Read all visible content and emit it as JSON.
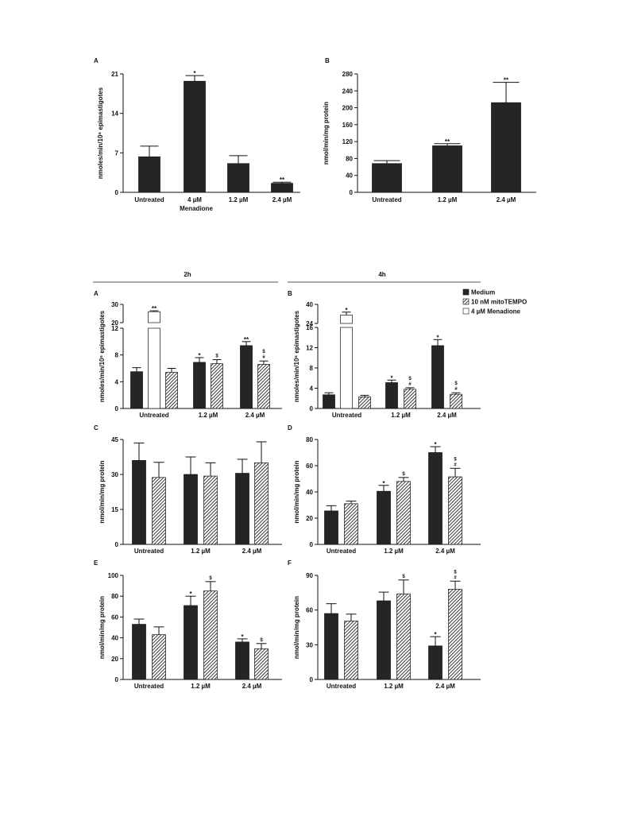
{
  "styles": {
    "medium": "#252525",
    "mito": "hatch",
    "menadione": "#ffffff",
    "axis": "#111111"
  },
  "legend": {
    "items": [
      {
        "key": "medium",
        "label": "Medium"
      },
      {
        "key": "mito",
        "label": "10 nM mitoTEMPO"
      },
      {
        "key": "menadione",
        "label": "4 µM Menadione"
      }
    ]
  },
  "headers": {
    "left": "2h",
    "right": "4h"
  },
  "chart_data": [
    {
      "id": "topA",
      "letter": "A",
      "type": "bar",
      "ylabel": "nmoles/min/10⁶ epimastigotes",
      "xlabel": "Menadione",
      "ylim": [
        0,
        21
      ],
      "yticks": [
        "0",
        "7",
        "14",
        "21"
      ],
      "ytickValues": [
        0,
        7,
        14,
        21
      ],
      "categories": [
        "Untreated",
        "4 µM",
        "1.2 µM",
        "2.4 µM"
      ],
      "bars": [
        {
          "value": 6.3,
          "err": 1.9,
          "style": "medium",
          "sig": ""
        },
        {
          "value": 19.7,
          "err": 1.0,
          "style": "medium",
          "sig": "*"
        },
        {
          "value": 5.1,
          "err": 1.4,
          "style": "medium",
          "sig": ""
        },
        {
          "value": 1.6,
          "err": 0.2,
          "style": "medium",
          "sig": "**"
        }
      ]
    },
    {
      "id": "topB",
      "letter": "B",
      "type": "bar",
      "ylabel": "nmol/min/mg protein",
      "ylim": [
        0,
        280
      ],
      "yticks": [
        "0",
        "40",
        "80",
        "120",
        "160",
        "200",
        "240",
        "280"
      ],
      "ytickValues": [
        0,
        40,
        80,
        120,
        160,
        200,
        240,
        280
      ],
      "categories": [
        "Untreated",
        "1.2 µM",
        "2.4 µM"
      ],
      "bars": [
        {
          "value": 68,
          "err": 7,
          "style": "medium",
          "sig": ""
        },
        {
          "value": 110,
          "err": 5,
          "style": "medium",
          "sig": "**"
        },
        {
          "value": 212,
          "err": 48,
          "style": "medium",
          "sig": "**"
        }
      ]
    },
    {
      "id": "bottomA",
      "letter": "A",
      "type": "bar",
      "ylabel": "nmoles/min/10⁶ epimastigotes",
      "broken": true,
      "lower": {
        "ylim": [
          0,
          12
        ],
        "yticks": [
          "0",
          "4",
          "8",
          "12"
        ],
        "ytickValues": [
          0,
          4,
          8,
          12
        ]
      },
      "upper": {
        "ylim": [
          20,
          30
        ],
        "yticks": [
          "20",
          "30"
        ],
        "ytickValues": [
          20,
          30
        ]
      },
      "categories": [
        "Untreated",
        "1.2 µM",
        "2.4 µM"
      ],
      "groups": [
        [
          {
            "value": 5.5,
            "err": 0.6,
            "style": "medium",
            "sig": ""
          },
          {
            "value": 26,
            "err": 0.5,
            "style": "menadione",
            "sig": "**"
          },
          {
            "value": 5.4,
            "err": 0.6,
            "style": "mito",
            "sig": ""
          }
        ],
        [
          {
            "value": 6.9,
            "err": 0.7,
            "style": "medium",
            "sig": "*"
          },
          {
            "value": 6.7,
            "err": 0.6,
            "style": "mito",
            "sig": "$"
          }
        ],
        [
          {
            "value": 9.4,
            "err": 0.6,
            "style": "medium",
            "sig": "**"
          },
          {
            "value": 6.6,
            "err": 0.5,
            "style": "mito",
            "sig": "$\n#"
          }
        ]
      ]
    },
    {
      "id": "bottomB",
      "letter": "B",
      "type": "bar",
      "ylabel": "nmoles/min/10⁶ epimastigotes",
      "broken": true,
      "lower": {
        "ylim": [
          0,
          16
        ],
        "yticks": [
          "0",
          "4",
          "8",
          "12",
          "16"
        ],
        "ytickValues": [
          0,
          4,
          8,
          12,
          16
        ]
      },
      "upper": {
        "ylim": [
          24,
          40
        ],
        "yticks": [
          "24",
          "40"
        ],
        "ytickValues": [
          24,
          40
        ]
      },
      "categories": [
        "Untreated",
        "1.2 µM",
        "2.4 µM"
      ],
      "groups": [
        [
          {
            "value": 2.7,
            "err": 0.4,
            "style": "medium",
            "sig": ""
          },
          {
            "value": 31,
            "err": 2.5,
            "style": "menadione",
            "sig": "*"
          },
          {
            "value": 2.3,
            "err": 0.3,
            "style": "mito",
            "sig": ""
          }
        ],
        [
          {
            "value": 5.1,
            "err": 0.5,
            "style": "medium",
            "sig": "*"
          },
          {
            "value": 3.8,
            "err": 0.3,
            "style": "mito",
            "sig": "$\n#"
          }
        ],
        [
          {
            "value": 12.4,
            "err": 1.2,
            "style": "medium",
            "sig": "*"
          },
          {
            "value": 2.8,
            "err": 0.3,
            "style": "mito",
            "sig": "$\n#"
          }
        ]
      ]
    },
    {
      "id": "C",
      "letter": "C",
      "type": "bar",
      "ylabel": "nmol/min/mg protein",
      "ylim": [
        0,
        45
      ],
      "yticks": [
        "0",
        "15",
        "30",
        "45"
      ],
      "ytickValues": [
        0,
        15,
        30,
        45
      ],
      "categories": [
        "Untreated",
        "1.2 µM",
        "2.4 µM"
      ],
      "groups": [
        [
          {
            "value": 36,
            "err": 7.5,
            "style": "medium",
            "sig": ""
          },
          {
            "value": 28.7,
            "err": 6.5,
            "style": "mito",
            "sig": ""
          }
        ],
        [
          {
            "value": 30,
            "err": 7.5,
            "style": "medium",
            "sig": ""
          },
          {
            "value": 29.3,
            "err": 5.7,
            "style": "mito",
            "sig": ""
          }
        ],
        [
          {
            "value": 30.5,
            "err": 6,
            "style": "medium",
            "sig": ""
          },
          {
            "value": 35,
            "err": 9,
            "style": "mito",
            "sig": ""
          }
        ]
      ]
    },
    {
      "id": "D",
      "letter": "D",
      "type": "bar",
      "ylabel": "nmol/min/mg protein",
      "ylim": [
        0,
        80
      ],
      "yticks": [
        "0",
        "20",
        "40",
        "60",
        "80"
      ],
      "ytickValues": [
        0,
        20,
        40,
        60,
        80
      ],
      "categories": [
        "Untreated",
        "1.2 µM",
        "2.4 µM"
      ],
      "groups": [
        [
          {
            "value": 25.5,
            "err": 4,
            "style": "medium",
            "sig": ""
          },
          {
            "value": 31,
            "err": 2,
            "style": "mito",
            "sig": ""
          }
        ],
        [
          {
            "value": 40.5,
            "err": 4.5,
            "style": "medium",
            "sig": "*"
          },
          {
            "value": 48,
            "err": 3,
            "style": "mito",
            "sig": "$"
          }
        ],
        [
          {
            "value": 70,
            "err": 4.5,
            "style": "medium",
            "sig": "*"
          },
          {
            "value": 51.5,
            "err": 6.5,
            "style": "mito",
            "sig": "$\n#"
          }
        ]
      ]
    },
    {
      "id": "E",
      "letter": "E",
      "type": "bar",
      "ylabel": "nmol/min/mg protein",
      "ylim": [
        0,
        100
      ],
      "yticks": [
        "0",
        "20",
        "40",
        "60",
        "80",
        "100"
      ],
      "ytickValues": [
        0,
        20,
        40,
        60,
        80,
        100
      ],
      "categories": [
        "Untreated",
        "1.2 µM",
        "2.4 µM"
      ],
      "groups": [
        [
          {
            "value": 53,
            "err": 5,
            "style": "medium",
            "sig": ""
          },
          {
            "value": 43,
            "err": 7.5,
            "style": "mito",
            "sig": ""
          }
        ],
        [
          {
            "value": 71,
            "err": 9,
            "style": "medium",
            "sig": "*"
          },
          {
            "value": 85,
            "err": 9,
            "style": "mito",
            "sig": "$"
          }
        ],
        [
          {
            "value": 36,
            "err": 3,
            "style": "medium",
            "sig": "*"
          },
          {
            "value": 29.5,
            "err": 5,
            "style": "mito",
            "sig": "$"
          }
        ]
      ]
    },
    {
      "id": "F",
      "letter": "F",
      "type": "bar",
      "ylabel": "nmol/min/mg protein",
      "ylim": [
        0,
        90
      ],
      "yticks": [
        "0",
        "30",
        "60",
        "90"
      ],
      "ytickValues": [
        0,
        30,
        60,
        90
      ],
      "categories": [
        "Untreated",
        "1.2 µM",
        "2.4 µM"
      ],
      "groups": [
        [
          {
            "value": 57,
            "err": 8.5,
            "style": "medium",
            "sig": ""
          },
          {
            "value": 50.5,
            "err": 6,
            "style": "mito",
            "sig": ""
          }
        ],
        [
          {
            "value": 68,
            "err": 7.5,
            "style": "medium",
            "sig": ""
          },
          {
            "value": 74,
            "err": 12,
            "style": "mito",
            "sig": "$"
          }
        ],
        [
          {
            "value": 29,
            "err": 8,
            "style": "medium",
            "sig": "*"
          },
          {
            "value": 78,
            "err": 7,
            "style": "mito",
            "sig": "$\n#"
          }
        ]
      ]
    }
  ]
}
